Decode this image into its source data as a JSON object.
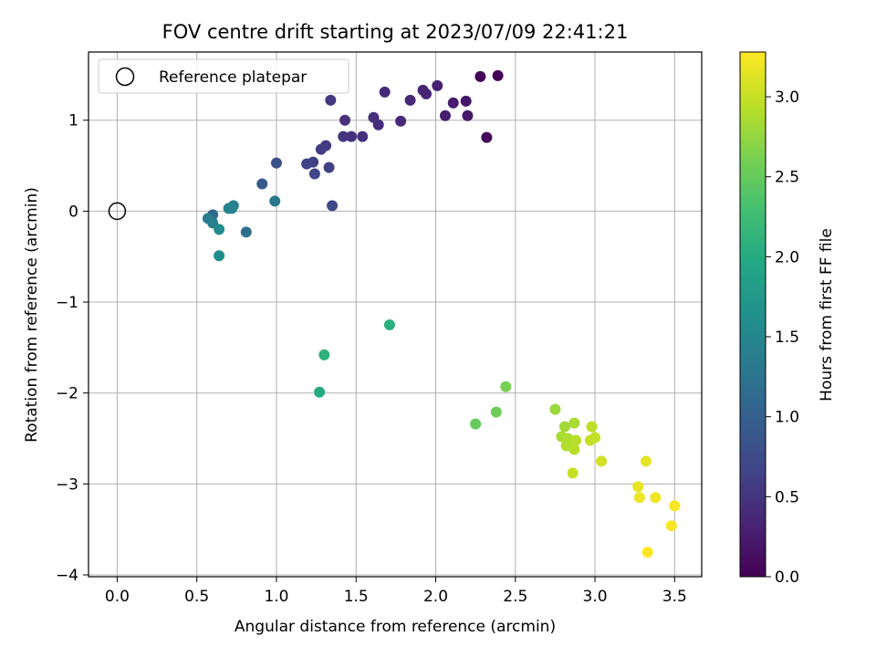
{
  "chart_data": {
    "type": "scatter",
    "title": "FOV centre drift starting at 2023/07/09 22:41:21",
    "xlabel": "Angular distance from reference (arcmin)",
    "ylabel": "Rotation from reference (arcmin)",
    "xlim": [
      -0.18,
      3.67
    ],
    "ylim": [
      -4.02,
      1.75
    ],
    "xticks": [
      0.0,
      0.5,
      1.0,
      1.5,
      2.0,
      2.5,
      3.0,
      3.5
    ],
    "xtick_labels": [
      "0.0",
      "0.5",
      "1.0",
      "1.5",
      "2.0",
      "2.5",
      "3.0",
      "3.5"
    ],
    "yticks": [
      -4,
      -3,
      -2,
      -1,
      0,
      1
    ],
    "ytick_labels": [
      "−4",
      "−3",
      "−2",
      "−1",
      "0",
      "1"
    ],
    "grid": true,
    "legend": {
      "position": "top-left",
      "entries": [
        {
          "label": "Reference platepar",
          "marker": "open-circle"
        }
      ]
    },
    "reference_point": {
      "x": 0.0,
      "y": 0.0
    },
    "colorbar": {
      "label": "Hours from first FF file",
      "colormap": "viridis",
      "range": [
        0.0,
        3.28
      ],
      "ticks": [
        0.0,
        0.5,
        1.0,
        1.5,
        2.0,
        2.5,
        3.0
      ],
      "tick_labels": [
        "0.0",
        "0.5",
        "1.0",
        "1.5",
        "2.0",
        "2.5",
        "3.0"
      ]
    },
    "points": [
      {
        "x": 2.28,
        "y": 1.48,
        "c": 0.03
      },
      {
        "x": 2.39,
        "y": 1.49,
        "c": 0.0
      },
      {
        "x": 2.32,
        "y": 0.81,
        "c": 0.08
      },
      {
        "x": 2.19,
        "y": 1.21,
        "c": 0.2
      },
      {
        "x": 2.2,
        "y": 1.05,
        "c": 0.22
      },
      {
        "x": 2.11,
        "y": 1.19,
        "c": 0.25
      },
      {
        "x": 2.06,
        "y": 1.05,
        "c": 0.28
      },
      {
        "x": 2.01,
        "y": 1.38,
        "c": 0.3
      },
      {
        "x": 1.94,
        "y": 1.29,
        "c": 0.33
      },
      {
        "x": 1.92,
        "y": 1.33,
        "c": 0.35
      },
      {
        "x": 1.84,
        "y": 1.22,
        "c": 0.36
      },
      {
        "x": 1.78,
        "y": 0.99,
        "c": 0.38
      },
      {
        "x": 1.68,
        "y": 1.31,
        "c": 0.4
      },
      {
        "x": 1.64,
        "y": 0.95,
        "c": 0.42
      },
      {
        "x": 1.61,
        "y": 1.03,
        "c": 0.43
      },
      {
        "x": 1.54,
        "y": 0.82,
        "c": 0.45
      },
      {
        "x": 1.47,
        "y": 0.82,
        "c": 0.47
      },
      {
        "x": 1.43,
        "y": 1.0,
        "c": 0.48
      },
      {
        "x": 1.42,
        "y": 0.82,
        "c": 0.5
      },
      {
        "x": 1.34,
        "y": 1.22,
        "c": 0.52
      },
      {
        "x": 1.31,
        "y": 0.72,
        "c": 0.55
      },
      {
        "x": 1.28,
        "y": 0.68,
        "c": 0.58
      },
      {
        "x": 1.33,
        "y": 0.48,
        "c": 0.6
      },
      {
        "x": 1.23,
        "y": 0.54,
        "c": 0.62
      },
      {
        "x": 1.19,
        "y": 0.52,
        "c": 0.65
      },
      {
        "x": 1.24,
        "y": 0.41,
        "c": 0.7
      },
      {
        "x": 1.35,
        "y": 0.06,
        "c": 0.72
      },
      {
        "x": 1.0,
        "y": 0.53,
        "c": 0.8
      },
      {
        "x": 0.91,
        "y": 0.3,
        "c": 0.95
      },
      {
        "x": 0.99,
        "y": 0.11,
        "c": 1.3
      },
      {
        "x": 0.73,
        "y": 0.06,
        "c": 1.4
      },
      {
        "x": 0.72,
        "y": 0.03,
        "c": 1.42
      },
      {
        "x": 0.7,
        "y": 0.03,
        "c": 1.45
      },
      {
        "x": 0.6,
        "y": -0.04,
        "c": 1.1
      },
      {
        "x": 0.57,
        "y": -0.08,
        "c": 1.35
      },
      {
        "x": 0.6,
        "y": -0.13,
        "c": 1.4
      },
      {
        "x": 0.64,
        "y": -0.2,
        "c": 1.55
      },
      {
        "x": 0.81,
        "y": -0.23,
        "c": 1.2
      },
      {
        "x": 0.64,
        "y": -0.49,
        "c": 1.6
      },
      {
        "x": 1.71,
        "y": -1.25,
        "c": 2.05
      },
      {
        "x": 1.3,
        "y": -1.58,
        "c": 2.1
      },
      {
        "x": 1.27,
        "y": -1.99,
        "c": 2.0
      },
      {
        "x": 2.44,
        "y": -1.93,
        "c": 2.6
      },
      {
        "x": 2.38,
        "y": -2.21,
        "c": 2.55
      },
      {
        "x": 2.25,
        "y": -2.34,
        "c": 2.5
      },
      {
        "x": 2.75,
        "y": -2.18,
        "c": 2.78
      },
      {
        "x": 2.81,
        "y": -2.37,
        "c": 2.82
      },
      {
        "x": 2.87,
        "y": -2.33,
        "c": 2.85
      },
      {
        "x": 2.79,
        "y": -2.48,
        "c": 2.85
      },
      {
        "x": 2.83,
        "y": -2.5,
        "c": 2.88
      },
      {
        "x": 2.84,
        "y": -2.55,
        "c": 2.9
      },
      {
        "x": 2.82,
        "y": -2.58,
        "c": 2.9
      },
      {
        "x": 2.88,
        "y": -2.52,
        "c": 2.92
      },
      {
        "x": 2.87,
        "y": -2.62,
        "c": 2.93
      },
      {
        "x": 2.98,
        "y": -2.37,
        "c": 2.95
      },
      {
        "x": 3.0,
        "y": -2.49,
        "c": 2.98
      },
      {
        "x": 2.97,
        "y": -2.52,
        "c": 3.0
      },
      {
        "x": 2.86,
        "y": -2.88,
        "c": 3.0
      },
      {
        "x": 3.04,
        "y": -2.75,
        "c": 3.05
      },
      {
        "x": 3.32,
        "y": -2.75,
        "c": 3.15
      },
      {
        "x": 3.27,
        "y": -3.03,
        "c": 3.18
      },
      {
        "x": 3.28,
        "y": -3.15,
        "c": 3.2
      },
      {
        "x": 3.38,
        "y": -3.15,
        "c": 3.22
      },
      {
        "x": 3.5,
        "y": -3.24,
        "c": 3.25
      },
      {
        "x": 3.48,
        "y": -3.46,
        "c": 3.25
      },
      {
        "x": 3.33,
        "y": -3.75,
        "c": 3.28
      }
    ]
  }
}
